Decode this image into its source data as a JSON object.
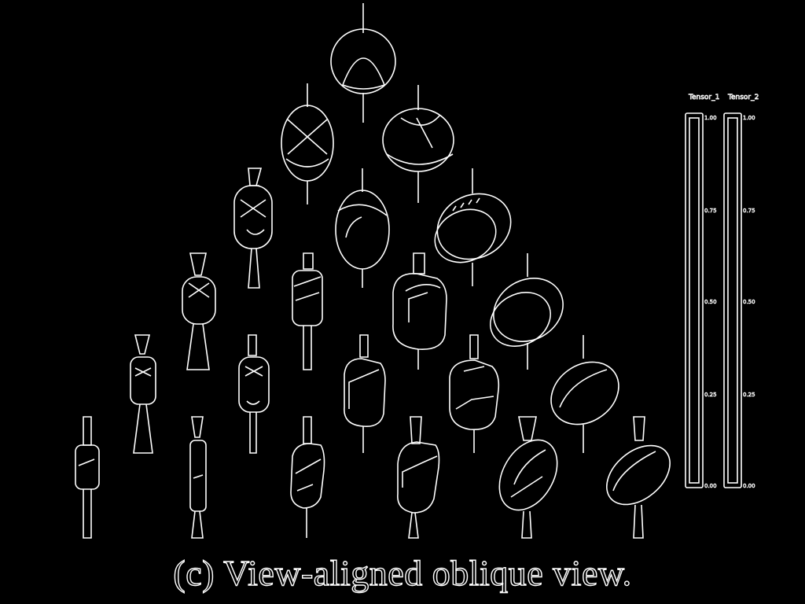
{
  "caption": "(c) View-aligned oblique view.",
  "colorbars": [
    {
      "label": "Tensor_1",
      "ticks": [
        "1.00",
        "0.75",
        "0.50",
        "0.25",
        "0.00"
      ]
    },
    {
      "label": "Tensor_2",
      "ticks": [
        "1.00",
        "0.75",
        "0.50",
        "0.25",
        "0.00"
      ]
    }
  ],
  "colors": {
    "background": "#000000",
    "stroke": "#ffffff"
  },
  "glyph_grid": {
    "rows": [
      [
        "sphere"
      ],
      [
        "ellipsoid",
        "oblate-disk"
      ],
      [
        "prolate",
        "ellipsoid",
        "flat-disk"
      ],
      [
        "prolate",
        "cylinder",
        "box",
        "flat-disk"
      ],
      [
        "prolate",
        "prolate",
        "box",
        "box",
        "disk"
      ],
      [
        "rod",
        "rod",
        "box",
        "box",
        "disk",
        "disk"
      ]
    ]
  }
}
